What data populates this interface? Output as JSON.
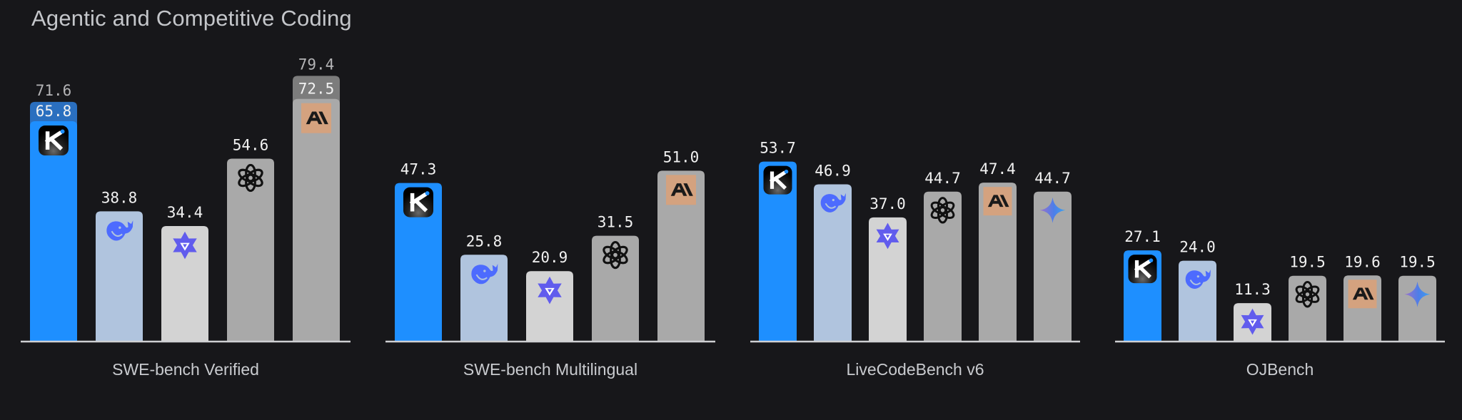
{
  "chart_data": {
    "type": "bar",
    "title": "Agentic and Competitive Coding",
    "xlabel": "",
    "ylabel": "",
    "ylim": [
      0,
      100
    ],
    "grid": false,
    "legend": "none (model logos drawn inside bars)",
    "models": [
      {
        "name": "kimi",
        "icon": "kimi-k-logo-icon",
        "color": "#1e8fff",
        "top_color": "#2a6fbf"
      },
      {
        "name": "deepseek",
        "icon": "deepseek-whale-icon",
        "color": "#b0c4de",
        "top_color": "#8ea4c2"
      },
      {
        "name": "qwen",
        "icon": "qwen-hexstar-icon",
        "color": "#d3d3d3",
        "top_color": "#b3b3b3"
      },
      {
        "name": "openai",
        "icon": "openai-knot-icon",
        "color": "#a9a9a9",
        "top_color": "#7c7c7c"
      },
      {
        "name": "anthropic",
        "icon": "anthropic-ai-icon",
        "color": "#a9a9a9",
        "top_color": "#7c7c7c"
      },
      {
        "name": "gemini",
        "icon": "gemini-sparkle-icon",
        "color": "#a9a9a9",
        "top_color": "#7c7c7c"
      }
    ],
    "groups": [
      {
        "category": "SWE-bench Verified",
        "bars": [
          {
            "model": "kimi",
            "value": 65.8,
            "value_label": "65.8",
            "extended_value": 71.6,
            "extended_label": "71.6"
          },
          {
            "model": "deepseek",
            "value": 38.8,
            "value_label": "38.8"
          },
          {
            "model": "qwen",
            "value": 34.4,
            "value_label": "34.4"
          },
          {
            "model": "openai",
            "value": 54.6,
            "value_label": "54.6"
          },
          {
            "model": "anthropic",
            "value": 72.5,
            "value_label": "72.5",
            "extended_value": 79.4,
            "extended_label": "79.4"
          }
        ]
      },
      {
        "category": "SWE-bench Multilingual",
        "bars": [
          {
            "model": "kimi",
            "value": 47.3,
            "value_label": "47.3"
          },
          {
            "model": "deepseek",
            "value": 25.8,
            "value_label": "25.8"
          },
          {
            "model": "qwen",
            "value": 20.9,
            "value_label": "20.9"
          },
          {
            "model": "openai",
            "value": 31.5,
            "value_label": "31.5"
          },
          {
            "model": "anthropic",
            "value": 51.0,
            "value_label": "51.0"
          }
        ]
      },
      {
        "category": "LiveCodeBench v6",
        "bars": [
          {
            "model": "kimi",
            "value": 53.7,
            "value_label": "53.7"
          },
          {
            "model": "deepseek",
            "value": 46.9,
            "value_label": "46.9"
          },
          {
            "model": "qwen",
            "value": 37.0,
            "value_label": "37.0"
          },
          {
            "model": "openai",
            "value": 44.7,
            "value_label": "44.7"
          },
          {
            "model": "anthropic",
            "value": 47.4,
            "value_label": "47.4"
          },
          {
            "model": "gemini",
            "value": 44.7,
            "value_label": "44.7"
          }
        ]
      },
      {
        "category": "OJBench",
        "bars": [
          {
            "model": "kimi",
            "value": 27.1,
            "value_label": "27.1"
          },
          {
            "model": "deepseek",
            "value": 24.0,
            "value_label": "24.0"
          },
          {
            "model": "qwen",
            "value": 11.3,
            "value_label": "11.3"
          },
          {
            "model": "openai",
            "value": 19.5,
            "value_label": "19.5"
          },
          {
            "model": "anthropic",
            "value": 19.6,
            "value_label": "19.6"
          },
          {
            "model": "gemini",
            "value": 19.5,
            "value_label": "19.5"
          }
        ]
      }
    ]
  }
}
